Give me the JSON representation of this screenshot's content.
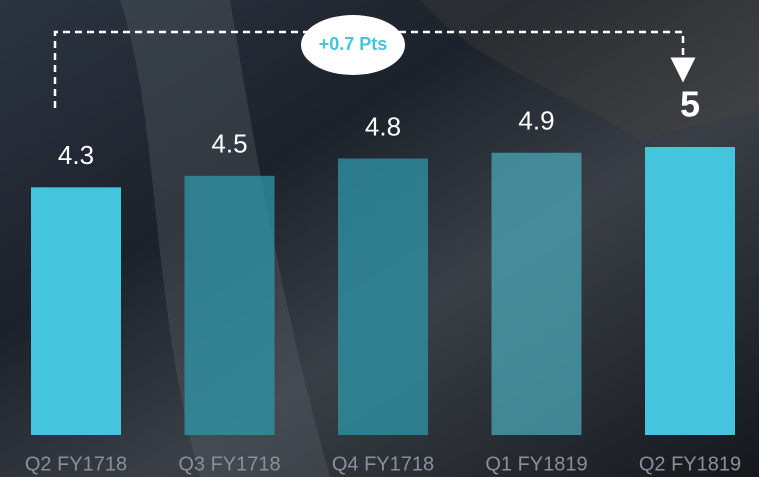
{
  "chart_data": {
    "type": "bar",
    "categories": [
      "Q2 FY1718",
      "Q3 FY1718",
      "Q4 FY1718",
      "Q1 FY1819",
      "Q2 FY1819"
    ],
    "values": [
      4.3,
      4.5,
      4.8,
      4.9,
      5.0
    ],
    "colors": [
      "#45c4de",
      "#2f97ab",
      "#2f97ab",
      "#4aa6b6",
      "#45c4de"
    ],
    "annotation": "+0.7 Pts"
  }
}
